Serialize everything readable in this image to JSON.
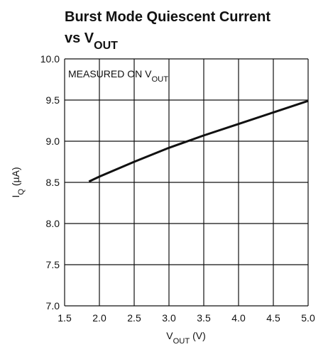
{
  "chart_data": {
    "type": "line",
    "title_lines": [
      [
        "Burst Mode Quiescent Current"
      ],
      [
        "vs V",
        "OUT"
      ]
    ],
    "xlabel": [
      "V",
      "OUT",
      " (V)"
    ],
    "ylabel": [
      "I",
      "Q",
      " (µA)"
    ],
    "annotation": [
      "MEASURED ON V",
      "OUT"
    ],
    "x": [
      1.85,
      2.0,
      2.5,
      3.0,
      3.5,
      4.0,
      4.5,
      5.0
    ],
    "series": [
      {
        "color": "#111111",
        "values": [
          8.51,
          8.57,
          8.75,
          8.92,
          9.07,
          9.21,
          9.35,
          9.49
        ]
      }
    ],
    "xlim": [
      1.5,
      5.0
    ],
    "xticks": [
      1.5,
      {
        "value": 2,
        "label": "2.0"
      },
      2.5,
      {
        "value": 3,
        "label": "3.0"
      },
      3.5,
      {
        "value": 4,
        "label": "4.0"
      },
      4.5,
      {
        "value": 5,
        "label": "5.0"
      }
    ],
    "ylim": [
      7.0,
      10.0
    ],
    "yticks": [
      {
        "value": 7,
        "label": "7.0"
      },
      7.5,
      {
        "value": 8,
        "label": "8.0"
      },
      8.5,
      {
        "value": 9,
        "label": "9.0"
      },
      9.5,
      {
        "value": 10,
        "label": "10.0"
      }
    ],
    "grid": true
  }
}
